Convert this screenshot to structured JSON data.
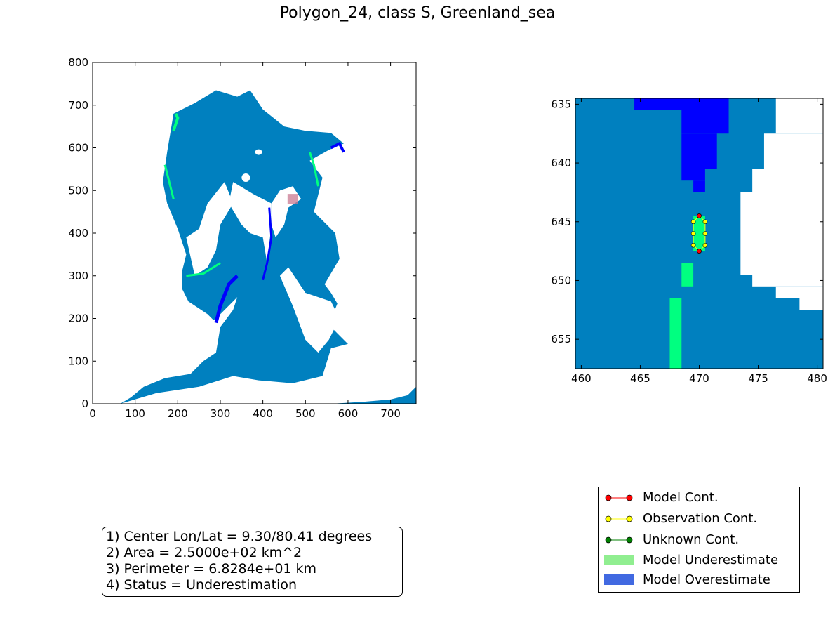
{
  "title": "Polygon_24, class S, Greenland_sea",
  "colors": {
    "ocean": "#0080bf",
    "underestimate_fill": "#00ff80",
    "overestimate_fill": "#0000ff",
    "land": "#ffffff",
    "model_contour": "#ff0000",
    "observation_contour": "#ffff00",
    "unknown_contour": "#008000",
    "legend_underestimate": "#90ee90",
    "legend_overestimate": "#4169e1"
  },
  "chart_data": [
    {
      "type": "heatmap",
      "title": "",
      "xlabel": "",
      "ylabel": "",
      "xlim": [
        0,
        760
      ],
      "ylim": [
        0,
        800
      ],
      "xticks": [
        "0",
        "100",
        "200",
        "300",
        "400",
        "500",
        "600",
        "700"
      ],
      "yticks": [
        "0",
        "100",
        "200",
        "300",
        "400",
        "500",
        "600",
        "700",
        "800"
      ],
      "highlight_polygon_center": [
        470,
        480
      ]
    },
    {
      "type": "heatmap",
      "title": "",
      "xlabel": "",
      "ylabel": "",
      "xlim": [
        459.5,
        480.5
      ],
      "ylim": [
        657.5,
        634.5
      ],
      "xticks": [
        "460",
        "465",
        "470",
        "475",
        "480"
      ],
      "yticks": [
        "635",
        "640",
        "645",
        "650",
        "655"
      ],
      "model_contour_points": [
        [
          470,
          644.5
        ],
        [
          470,
          647.5
        ]
      ],
      "observation_contour_points": [
        [
          470,
          644.5
        ],
        [
          470.5,
          645
        ],
        [
          470.5,
          646
        ],
        [
          470.5,
          647
        ],
        [
          470,
          647.5
        ],
        [
          469.5,
          647
        ],
        [
          469.5,
          646
        ],
        [
          469.5,
          645
        ]
      ]
    }
  ],
  "info": {
    "line1": "1) Center Lon/Lat = 9.30/80.41 degrees",
    "line2": "2) Area = 2.5000e+02 km^2",
    "line3": "3) Perimeter = 6.8284e+01 km",
    "line4": "4) Status = Underestimation"
  },
  "legend": {
    "items": [
      {
        "label": "Model Cont.",
        "kind": "line",
        "color": "#ff0000"
      },
      {
        "label": "Observation Cont.",
        "kind": "line",
        "color": "#ffff00"
      },
      {
        "label": "Unknown Cont.",
        "kind": "line",
        "color": "#008000"
      },
      {
        "label": "Model Underestimate",
        "kind": "patch",
        "color": "#90ee90"
      },
      {
        "label": "Model Overestimate",
        "kind": "patch",
        "color": "#4169e1"
      }
    ]
  }
}
